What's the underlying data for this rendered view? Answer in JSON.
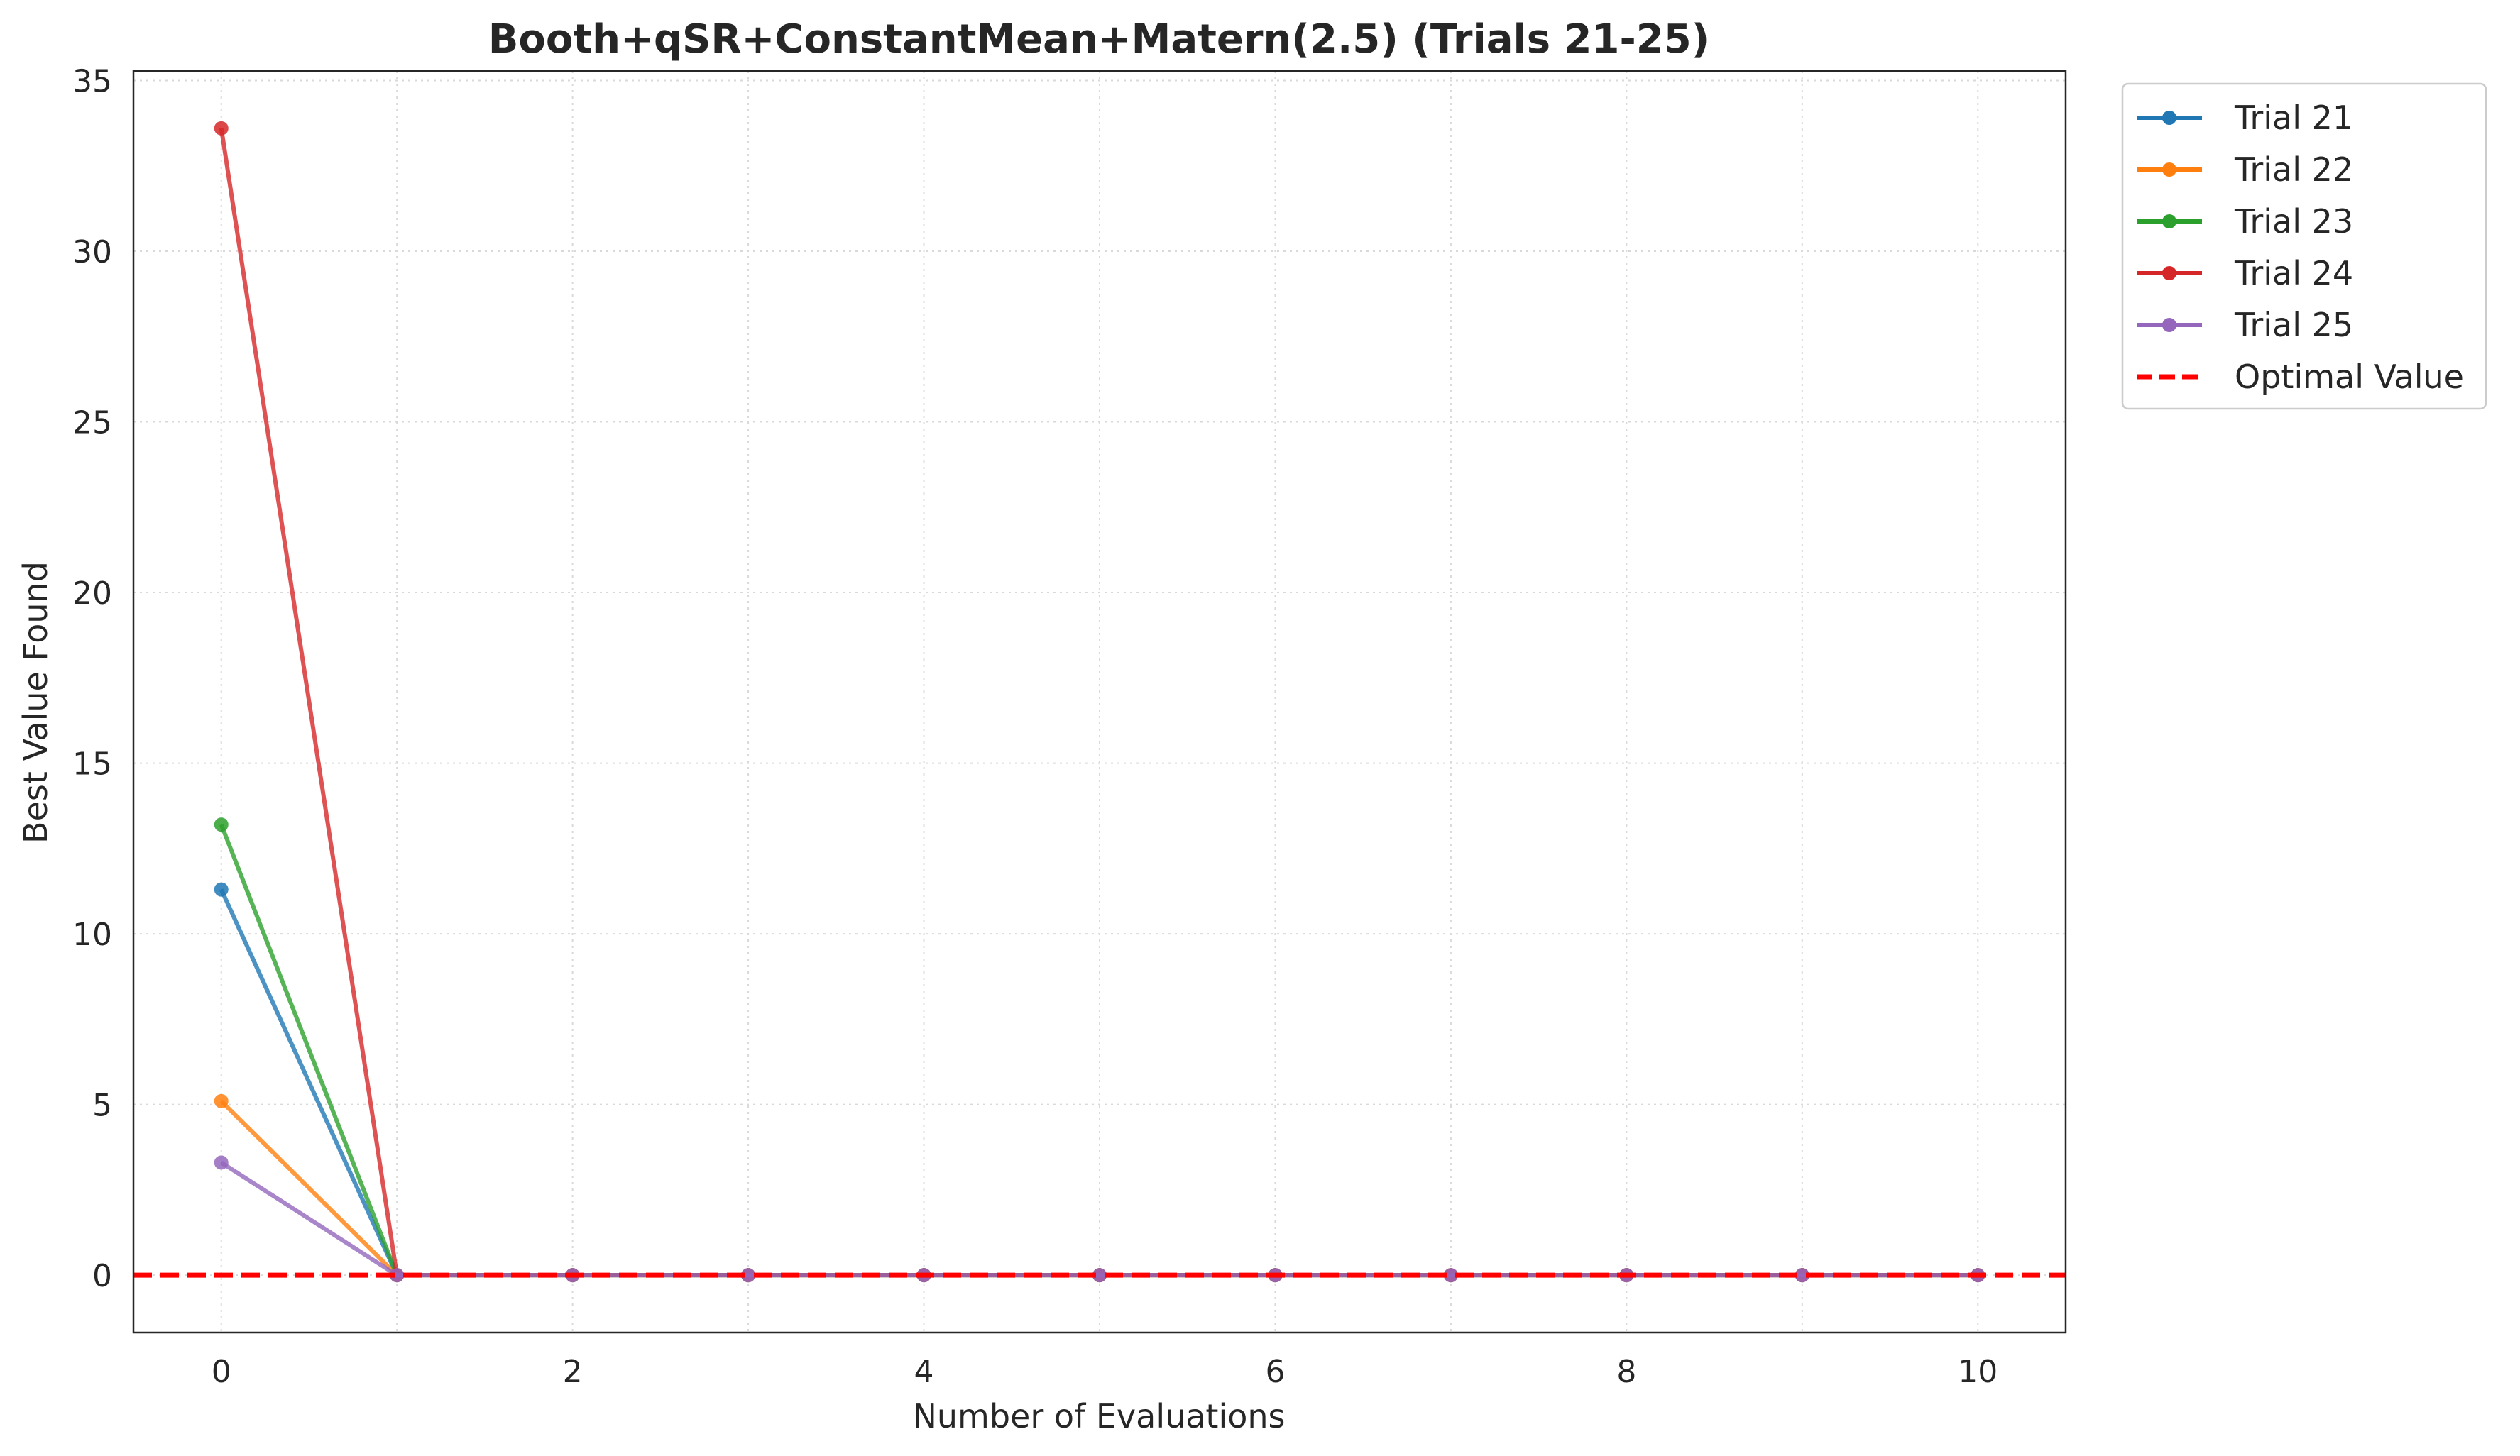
{
  "chart_data": {
    "type": "line",
    "title": "Booth+qSR+ConstantMean+Matern(2.5) (Trials 21-25)",
    "xlabel": "Number of Evaluations",
    "ylabel": "Best Value Found",
    "xlim": [
      -0.5,
      10.5
    ],
    "ylim": [
      -1.68,
      35.28
    ],
    "xticks": [
      0,
      2,
      4,
      6,
      8,
      10
    ],
    "yticks": [
      0,
      5,
      10,
      15,
      20,
      25,
      30,
      35
    ],
    "grid": true,
    "legend_position": "outside-top-right",
    "x": [
      0,
      1,
      2,
      3,
      4,
      5,
      6,
      7,
      8,
      9,
      10
    ],
    "series": [
      {
        "name": "Trial 21",
        "color": "#1f77b4",
        "values": [
          11.3,
          0,
          0,
          0,
          0,
          0,
          0,
          0,
          0,
          0,
          0
        ]
      },
      {
        "name": "Trial 22",
        "color": "#ff7f0e",
        "values": [
          5.1,
          0,
          0,
          0,
          0,
          0,
          0,
          0,
          0,
          0,
          0
        ]
      },
      {
        "name": "Trial 23",
        "color": "#2ca02c",
        "values": [
          13.2,
          0,
          0,
          0,
          0,
          0,
          0,
          0,
          0,
          0,
          0
        ]
      },
      {
        "name": "Trial 24",
        "color": "#d62728",
        "values": [
          33.6,
          0,
          0,
          0,
          0,
          0,
          0,
          0,
          0,
          0,
          0
        ]
      },
      {
        "name": "Trial 25",
        "color": "#9467bd",
        "values": [
          3.3,
          0,
          0,
          0,
          0,
          0,
          0,
          0,
          0,
          0,
          0
        ]
      }
    ],
    "reference_line": {
      "name": "Optimal Value",
      "value": 0,
      "color": "#ff0000",
      "style": "dashed"
    }
  }
}
